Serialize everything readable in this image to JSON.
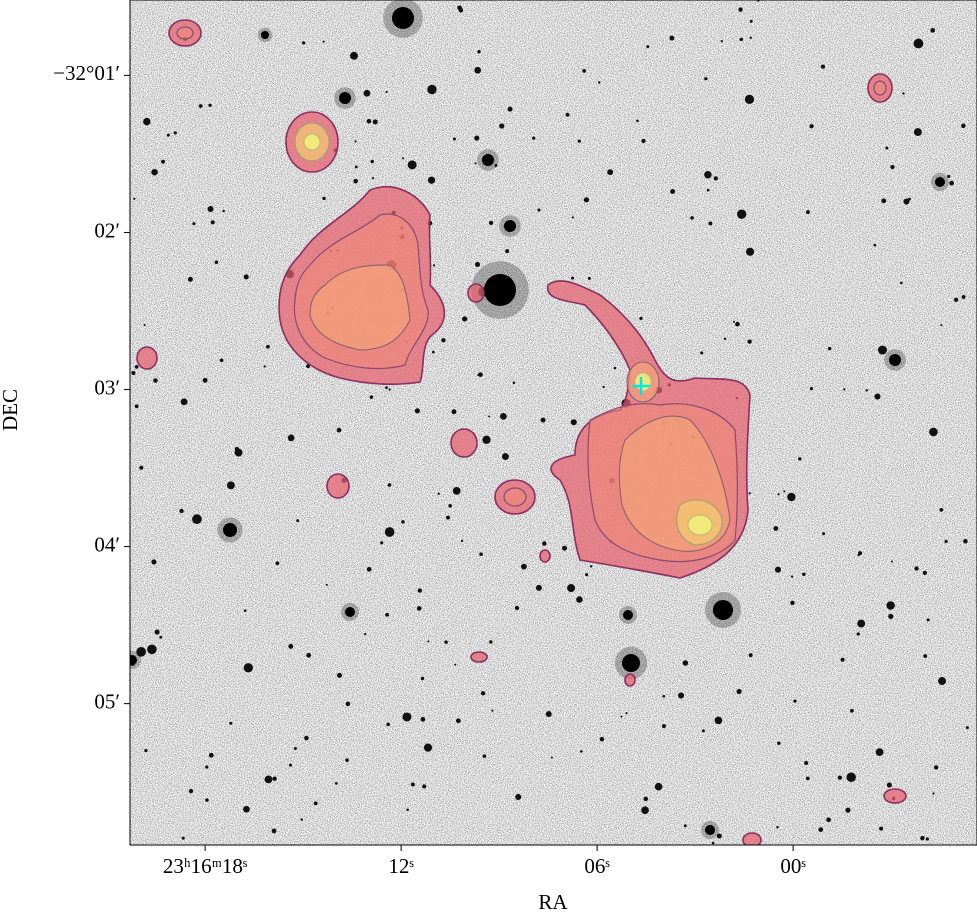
{
  "chart_data": {
    "type": "sky-image",
    "xlabel": "RA",
    "ylabel": "DEC",
    "xlim": [
      20.3,
      -5.63
    ],
    "xticks": [
      {
        "value": 18,
        "label": "23ʰ16ᵐ18ˢ"
      },
      {
        "value": 12,
        "label": "12ˢ"
      },
      {
        "value": 6,
        "label": "06ˢ"
      },
      {
        "value": 0,
        "label": "00ˢ"
      }
    ],
    "ylim": [
      5.9,
      0.52
    ],
    "yticks": [
      {
        "value": 1,
        "label": "−32°01′"
      },
      {
        "value": 2,
        "label": "02′"
      },
      {
        "value": 3,
        "label": "03′"
      },
      {
        "value": 4,
        "label": "04′"
      },
      {
        "value": 5,
        "label": "05′"
      }
    ]
  }
}
